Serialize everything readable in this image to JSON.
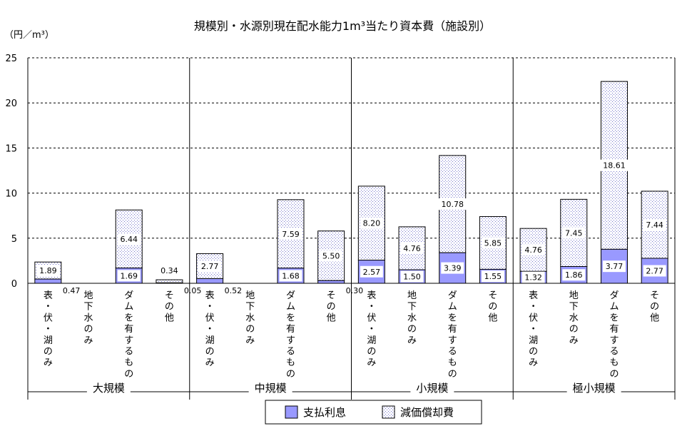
{
  "chart_data": {
    "type": "bar",
    "stacked": true,
    "title": "規模別・水源別現在配水能力1m³当たり資本費（施設別）",
    "ylabel": "（円／m³）",
    "ylim": [
      0,
      25
    ],
    "yticks": [
      "0",
      "5",
      "10",
      "15",
      "20",
      "25"
    ],
    "grid": true,
    "legend_position": "bottom-center",
    "groups": [
      "大規模",
      "中規模",
      "小規模",
      "極小規模"
    ],
    "categories": [
      "表・伏・湖のみ",
      "地下水のみ",
      "ダムを有するもの",
      "その他"
    ],
    "category_chars": [
      [
        "表",
        "・",
        "伏",
        "・",
        "湖",
        "の",
        "み"
      ],
      [
        "地",
        "下",
        "水",
        "の",
        "み"
      ],
      [
        "ダ",
        "ム",
        "を",
        "有",
        "す",
        "る",
        "も",
        "の"
      ],
      [
        "そ",
        "の",
        "他"
      ]
    ],
    "series": [
      {
        "name": "支払利息",
        "color": "#9999ff",
        "values": [
          [
            0.47,
            0,
            1.69,
            0.05
          ],
          [
            0.52,
            0,
            1.68,
            0.3
          ],
          [
            2.57,
            1.5,
            3.39,
            1.55
          ],
          [
            1.32,
            1.86,
            3.77,
            2.77
          ]
        ],
        "labels": [
          [
            "0.47",
            "",
            "1.69",
            "0.05"
          ],
          [
            "0.52",
            "",
            "1.68",
            "0.30"
          ],
          [
            "2.57",
            "1.50",
            "3.39",
            "1.55"
          ],
          [
            "1.32",
            "1.86",
            "3.77",
            "2.77"
          ]
        ]
      },
      {
        "name": "減価償却費",
        "color": "#ccccff",
        "values": [
          [
            1.89,
            0,
            6.44,
            0.34
          ],
          [
            2.77,
            0,
            7.59,
            5.5
          ],
          [
            8.2,
            4.76,
            10.78,
            5.85
          ],
          [
            4.76,
            7.45,
            18.61,
            7.44
          ]
        ],
        "labels": [
          [
            "1.89",
            "",
            "6.44",
            "0.34"
          ],
          [
            "2.77",
            "",
            "7.59",
            "5.50"
          ],
          [
            "8.20",
            "4.76",
            "10.78",
            "5.85"
          ],
          [
            "4.76",
            "7.45",
            "18.61",
            "7.44"
          ]
        ]
      }
    ]
  }
}
